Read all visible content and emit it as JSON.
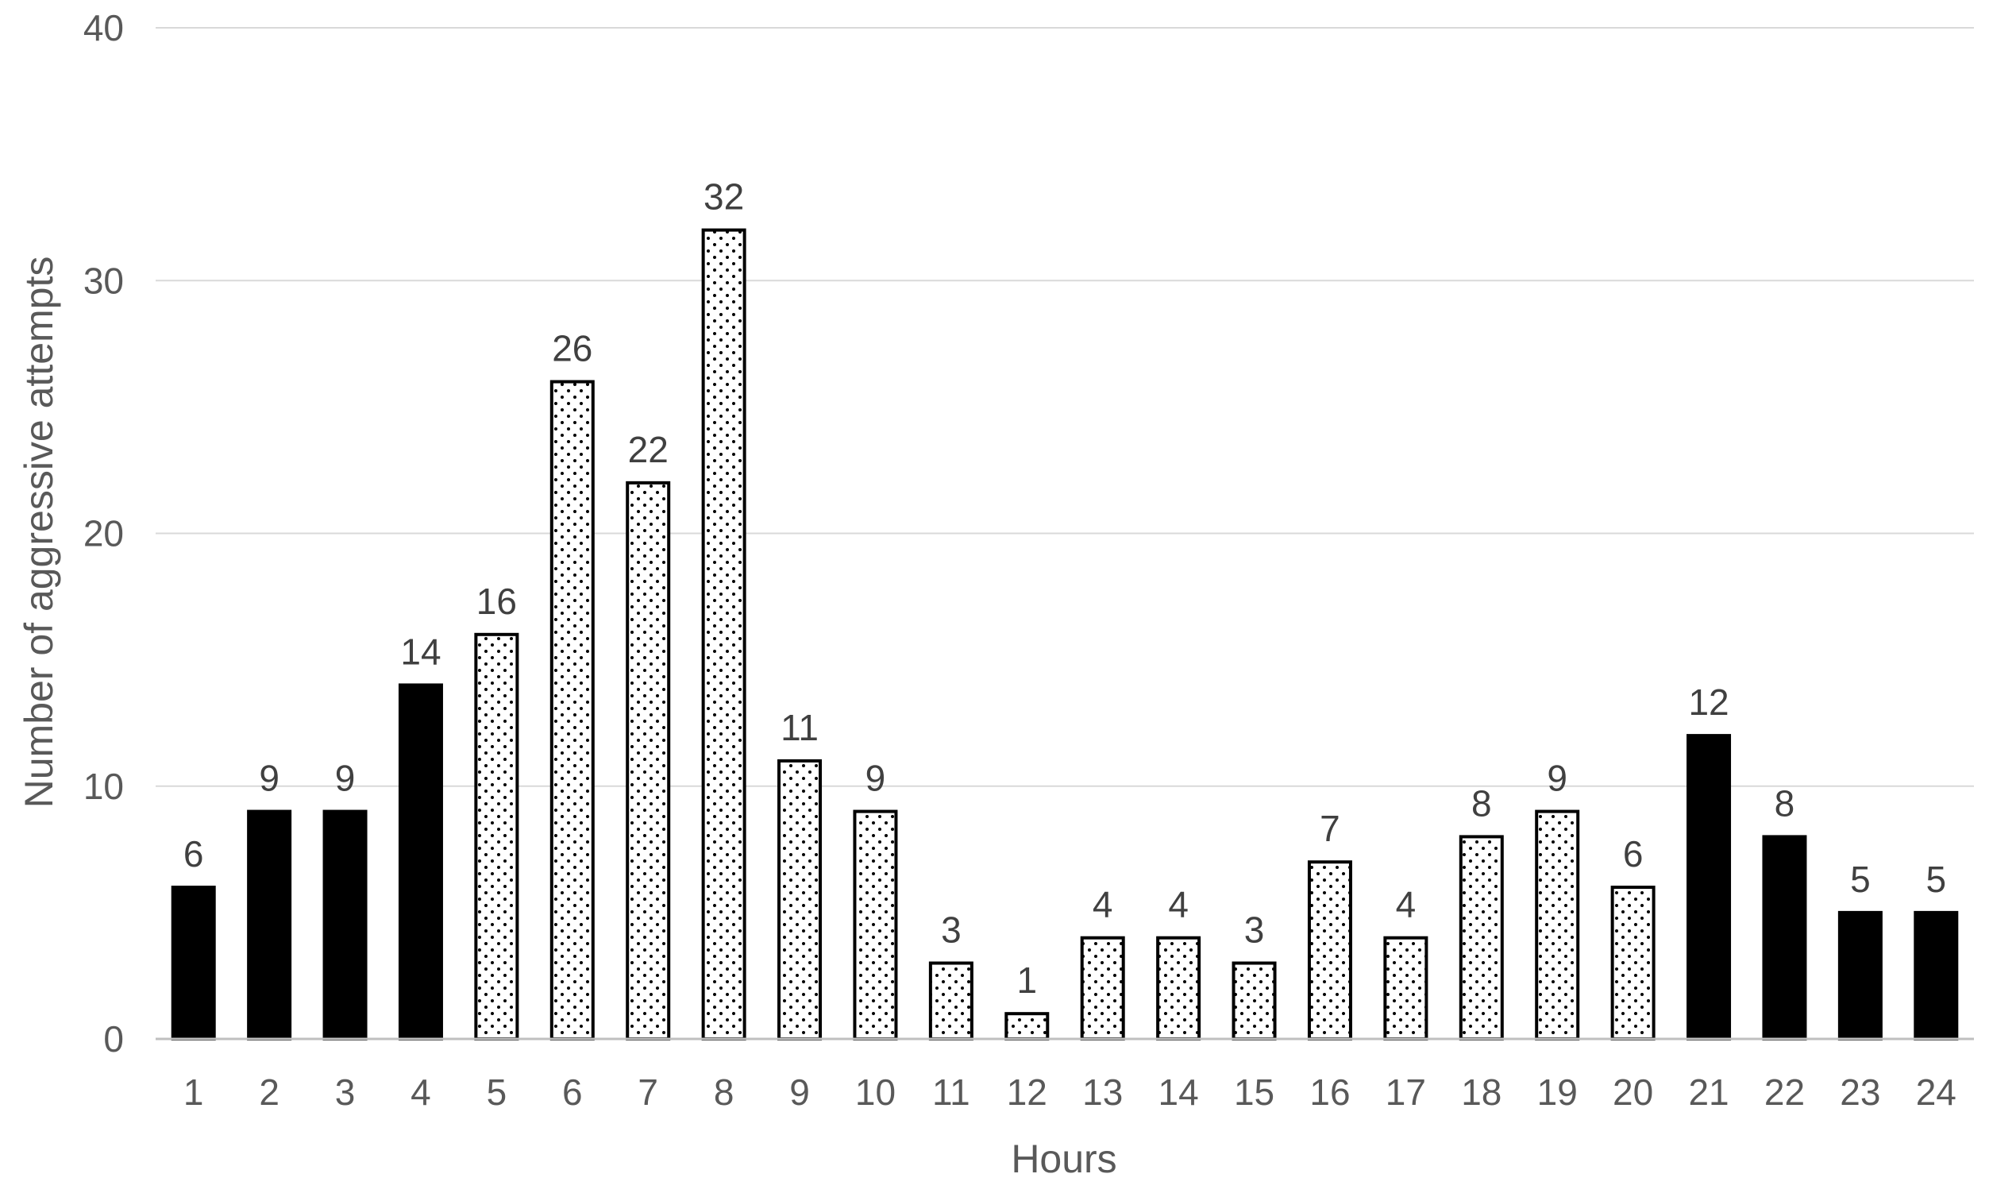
{
  "chart_data": {
    "type": "bar",
    "xlabel": "Hours",
    "ylabel": "Number of aggressive attempts",
    "ylim": [
      0,
      40
    ],
    "yticks": [
      0,
      10,
      20,
      30,
      40
    ],
    "grid": true,
    "data_labels": true,
    "categories": [
      "1",
      "2",
      "3",
      "4",
      "5",
      "6",
      "7",
      "8",
      "9",
      "10",
      "11",
      "12",
      "13",
      "14",
      "15",
      "16",
      "17",
      "18",
      "19",
      "20",
      "21",
      "22",
      "23",
      "24"
    ],
    "values": [
      6,
      9,
      9,
      14,
      16,
      26,
      22,
      32,
      11,
      9,
      3,
      1,
      4,
      4,
      3,
      7,
      4,
      8,
      9,
      6,
      12,
      8,
      5,
      5
    ],
    "fill_styles": [
      "solid",
      "solid",
      "solid",
      "solid",
      "dotted",
      "dotted",
      "dotted",
      "dotted",
      "dotted",
      "dotted",
      "dotted",
      "dotted",
      "dotted",
      "dotted",
      "dotted",
      "dotted",
      "dotted",
      "dotted",
      "dotted",
      "dotted",
      "solid",
      "solid",
      "solid",
      "solid"
    ],
    "colors": {
      "solid": "#000000",
      "dotted_background": "#ffffff",
      "dots": "#000000",
      "grid": "#d9d9d9",
      "axis": "#bfbfbf",
      "text": "#595959"
    }
  }
}
